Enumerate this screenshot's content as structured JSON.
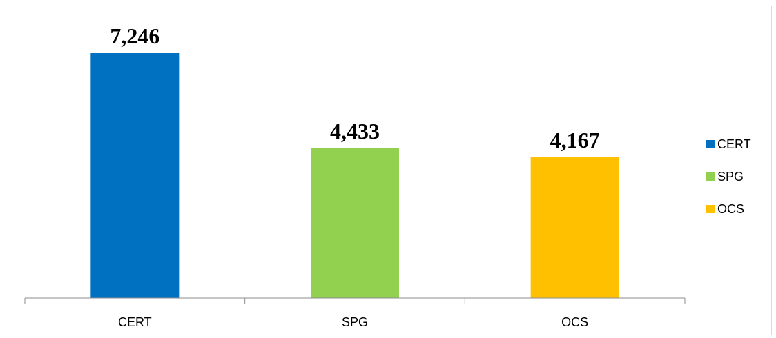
{
  "chart_data": {
    "type": "bar",
    "categories": [
      "CERT",
      "SPG",
      "OCS"
    ],
    "values": [
      7246,
      4433,
      4167
    ],
    "value_labels": [
      "7,246",
      "4,433",
      "4,167"
    ],
    "colors": [
      "#0070c0",
      "#92d050",
      "#ffc000"
    ],
    "ylim": [
      0,
      7246
    ],
    "grid": false,
    "legend": {
      "position": "right",
      "entries": [
        "CERT",
        "SPG",
        "OCS"
      ]
    },
    "title": "",
    "xlabel": "",
    "ylabel": ""
  }
}
